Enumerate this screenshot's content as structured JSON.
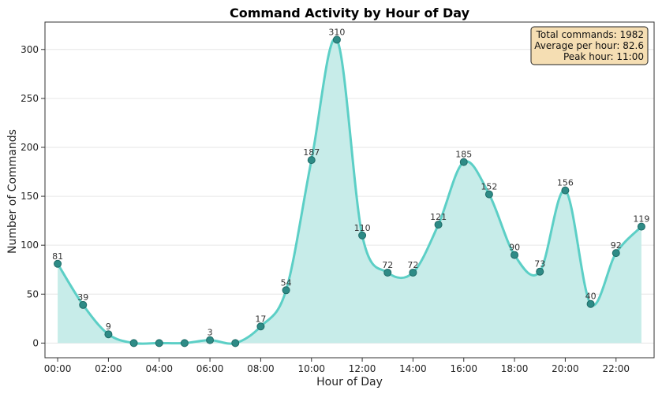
{
  "chart_data": {
    "type": "area",
    "title": "Command Activity by Hour of Day",
    "xlabel": "Hour of Day",
    "ylabel": "Number of Commands",
    "x": [
      0,
      1,
      2,
      3,
      4,
      5,
      6,
      7,
      8,
      9,
      10,
      11,
      12,
      13,
      14,
      15,
      16,
      17,
      18,
      19,
      20,
      21,
      22,
      23
    ],
    "values": [
      81,
      39,
      9,
      0,
      0,
      0,
      3,
      0,
      17,
      54,
      187,
      310,
      110,
      72,
      72,
      121,
      185,
      152,
      90,
      73,
      156,
      40,
      92,
      119
    ],
    "point_labels": [
      "81",
      "39",
      "9",
      "",
      "",
      "",
      "3",
      "",
      "17",
      "54",
      "187",
      "310",
      "110",
      "72",
      "72",
      "121",
      "185",
      "152",
      "90",
      "73",
      "156",
      "40",
      "92",
      "119"
    ],
    "x_ticks": [
      0,
      2,
      4,
      6,
      8,
      10,
      12,
      14,
      16,
      18,
      20,
      22
    ],
    "x_tick_labels": [
      "00:00",
      "02:00",
      "04:00",
      "06:00",
      "08:00",
      "10:00",
      "12:00",
      "14:00",
      "16:00",
      "18:00",
      "20:00",
      "22:00"
    ],
    "y_ticks": [
      0,
      50,
      100,
      150,
      200,
      250,
      300
    ],
    "y_tick_labels": [
      "0",
      "50",
      "100",
      "150",
      "200",
      "250",
      "300"
    ],
    "xlim": [
      -0.5,
      23.5
    ],
    "ylim": [
      -15,
      328
    ],
    "grid": "horizontal",
    "colors": {
      "line": "#5ccfc6",
      "fill": "#c7ece9",
      "marker": "#2e8b86",
      "marker_edge": "#1f6b67",
      "grid": "#e6e6e6",
      "info_bg": "#f5deb3",
      "info_border": "#222222"
    },
    "info_box": {
      "lines": [
        "Total commands: 1982",
        "Average per hour: 82.6",
        "Peak hour: 11:00"
      ],
      "placement": "top-right"
    }
  }
}
